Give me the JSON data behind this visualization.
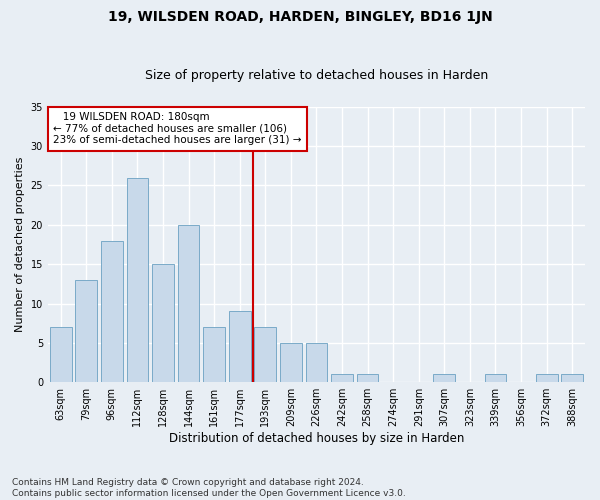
{
  "title": "19, WILSDEN ROAD, HARDEN, BINGLEY, BD16 1JN",
  "subtitle": "Size of property relative to detached houses in Harden",
  "xlabel": "Distribution of detached houses by size in Harden",
  "ylabel": "Number of detached properties",
  "categories": [
    "63sqm",
    "79sqm",
    "96sqm",
    "112sqm",
    "128sqm",
    "144sqm",
    "161sqm",
    "177sqm",
    "193sqm",
    "209sqm",
    "226sqm",
    "242sqm",
    "258sqm",
    "274sqm",
    "291sqm",
    "307sqm",
    "323sqm",
    "339sqm",
    "356sqm",
    "372sqm",
    "388sqm"
  ],
  "values": [
    7,
    13,
    18,
    26,
    15,
    20,
    7,
    9,
    7,
    5,
    5,
    1,
    1,
    0,
    0,
    1,
    0,
    1,
    0,
    1,
    1
  ],
  "bar_color": "#c8d9ea",
  "bar_edge_color": "#7aaac8",
  "vline_x": 7.5,
  "vline_color": "#cc0000",
  "annotation_line1": "   19 WILSDEN ROAD: 180sqm",
  "annotation_line2": "← 77% of detached houses are smaller (106)",
  "annotation_line3": "23% of semi-detached houses are larger (31) →",
  "annotation_box_color": "#ffffff",
  "annotation_box_edge": "#cc0000",
  "ylim": [
    0,
    35
  ],
  "yticks": [
    0,
    5,
    10,
    15,
    20,
    25,
    30,
    35
  ],
  "footer": "Contains HM Land Registry data © Crown copyright and database right 2024.\nContains public sector information licensed under the Open Government Licence v3.0.",
  "bg_color": "#e8eef4",
  "plot_bg_color": "#e8eef4",
  "title_fontsize": 10,
  "subtitle_fontsize": 9,
  "tick_fontsize": 7,
  "ylabel_fontsize": 8,
  "xlabel_fontsize": 8.5,
  "footer_fontsize": 6.5
}
